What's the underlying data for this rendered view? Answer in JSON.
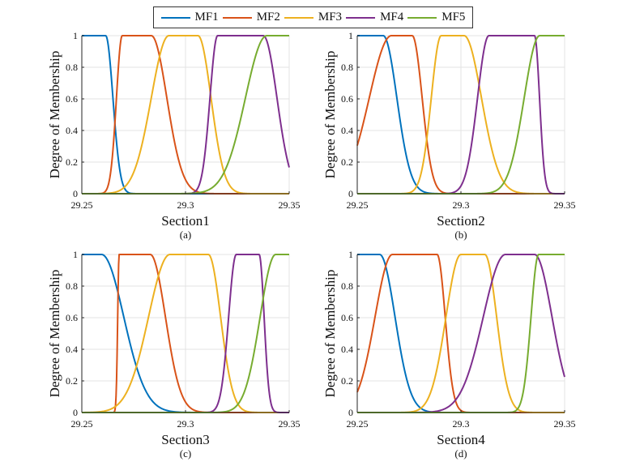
{
  "legend": {
    "position": "top-center",
    "entries": [
      {
        "label": "MF1",
        "color": "#0072BD"
      },
      {
        "label": "MF2",
        "color": "#D95319"
      },
      {
        "label": "MF3",
        "color": "#EDB120"
      },
      {
        "label": "MF4",
        "color": "#7E2F8E"
      },
      {
        "label": "MF5",
        "color": "#77AC30"
      }
    ]
  },
  "chart_data": [
    {
      "type": "line",
      "title": "Section1",
      "caption": "(a)",
      "ylabel": "Degree of Membership",
      "xlim": [
        29.25,
        29.35
      ],
      "ylim": [
        0,
        1
      ],
      "xticks": [
        "29.25",
        "29.3",
        "29.35"
      ],
      "yticks": [
        "0",
        "0.2",
        "0.4",
        "0.6",
        "0.8",
        "1"
      ],
      "grid": true,
      "series": [
        {
          "name": "MF1",
          "color": "#0072BD",
          "plateau": [
            29.25,
            29.2615
          ],
          "sigma_left": 0.004,
          "sigma_right": 0.0035
        },
        {
          "name": "MF2",
          "color": "#D95319",
          "plateau": [
            29.2695,
            29.2835
          ],
          "sigma_left": 0.0028,
          "sigma_right": 0.0075
        },
        {
          "name": "MF3",
          "color": "#EDB120",
          "plateau": [
            29.292,
            29.306
          ],
          "sigma_left": 0.0085,
          "sigma_right": 0.0063
        },
        {
          "name": "MF4",
          "color": "#7E2F8E",
          "plateau": [
            29.3155,
            29.3375
          ],
          "sigma_left": 0.0037,
          "sigma_right": 0.0066
        },
        {
          "name": "MF5",
          "color": "#77AC30",
          "plateau": [
            29.3392,
            29.35
          ],
          "sigma_left": 0.0103,
          "sigma_right": 0.01
        }
      ]
    },
    {
      "type": "line",
      "title": "Section2",
      "caption": "(b)",
      "ylabel": "Degree of Membership",
      "xlim": [
        29.25,
        29.35
      ],
      "ylim": [
        0,
        1
      ],
      "xticks": [
        "29.25",
        "29.3",
        "29.35"
      ],
      "yticks": [
        "0",
        "0.2",
        "0.4",
        "0.6",
        "0.8",
        "1"
      ],
      "grid": true,
      "series": [
        {
          "name": "MF1",
          "color": "#0072BD",
          "plateau": [
            29.25,
            29.2625
          ],
          "sigma_left": 0.004,
          "sigma_right": 0.0066
        },
        {
          "name": "MF2",
          "color": "#D95319",
          "plateau": [
            29.2665,
            29.2765
          ],
          "sigma_left": 0.0107,
          "sigma_right": 0.0048
        },
        {
          "name": "MF3",
          "color": "#EDB120",
          "plateau": [
            29.2905,
            29.3015
          ],
          "sigma_left": 0.0048,
          "sigma_right": 0.0084
        },
        {
          "name": "MF4",
          "color": "#7E2F8E",
          "plateau": [
            29.3135,
            29.3355
          ],
          "sigma_left": 0.0055,
          "sigma_right": 0.0024
        },
        {
          "name": "MF5",
          "color": "#77AC30",
          "plateau": [
            29.338,
            29.35
          ],
          "sigma_left": 0.0075,
          "sigma_right": 0.01
        }
      ]
    },
    {
      "type": "line",
      "title": "Section3",
      "caption": "(c)",
      "ylabel": "Degree of Membership",
      "xlim": [
        29.25,
        29.35
      ],
      "ylim": [
        0,
        1
      ],
      "xticks": [
        "29.25",
        "29.3",
        "29.35"
      ],
      "yticks": [
        "0",
        "0.2",
        "0.4",
        "0.6",
        "0.8",
        "1"
      ],
      "grid": true,
      "series": [
        {
          "name": "MF1",
          "color": "#0072BD",
          "plateau": [
            29.25,
            29.2595
          ],
          "sigma_left": 0.004,
          "sigma_right": 0.0107
        },
        {
          "name": "MF2",
          "color": "#D95319",
          "plateau": [
            29.268,
            29.283
          ],
          "sigma_left": 0.0007,
          "sigma_right": 0.0073
        },
        {
          "name": "MF3",
          "color": "#EDB120",
          "plateau": [
            29.2925,
            29.311
          ],
          "sigma_left": 0.0103,
          "sigma_right": 0.0059
        },
        {
          "name": "MF4",
          "color": "#7E2F8E",
          "plateau": [
            29.3245,
            29.3355
          ],
          "sigma_left": 0.0037,
          "sigma_right": 0.0024
        },
        {
          "name": "MF5",
          "color": "#77AC30",
          "plateau": [
            29.3435,
            29.35
          ],
          "sigma_left": 0.0075,
          "sigma_right": 0.01
        }
      ]
    },
    {
      "type": "line",
      "title": "Section4",
      "caption": "(d)",
      "ylabel": "Degree of Membership",
      "xlim": [
        29.25,
        29.35
      ],
      "ylim": [
        0,
        1
      ],
      "xticks": [
        "29.25",
        "29.3",
        "29.35"
      ],
      "yticks": [
        "0",
        "0.2",
        "0.4",
        "0.6",
        "0.8",
        "1"
      ],
      "grid": true,
      "series": [
        {
          "name": "MF1",
          "color": "#0072BD",
          "plateau": [
            29.25,
            29.2608
          ],
          "sigma_left": 0.004,
          "sigma_right": 0.0074
        },
        {
          "name": "MF2",
          "color": "#D95319",
          "plateau": [
            29.267,
            29.2885
          ],
          "sigma_left": 0.0084,
          "sigma_right": 0.0039
        },
        {
          "name": "MF3",
          "color": "#EDB120",
          "plateau": [
            29.3,
            29.3115
          ],
          "sigma_left": 0.0072,
          "sigma_right": 0.0057
        },
        {
          "name": "MF4",
          "color": "#7E2F8E",
          "plateau": [
            29.3215,
            29.3355
          ],
          "sigma_left": 0.0107,
          "sigma_right": 0.0084
        },
        {
          "name": "MF5",
          "color": "#77AC30",
          "plateau": [
            29.3375,
            29.35
          ],
          "sigma_left": 0.0037,
          "sigma_right": 0.01
        }
      ]
    }
  ]
}
